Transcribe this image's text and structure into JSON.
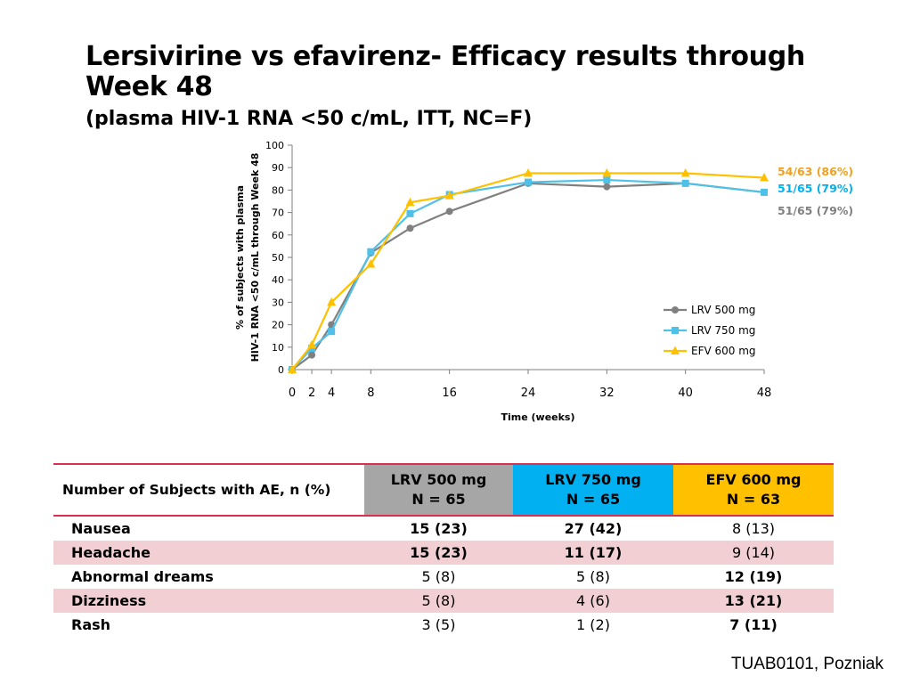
{
  "slide": {
    "title_line1": "Lersivirine vs efavirenz- Efficacy results through",
    "title_line2": "Week 48",
    "subtitle": "(plasma HIV-1 RNA <50 c/mL, ITT, NC=F)",
    "footer": "TUAB0101, Pozniak"
  },
  "chart_data": {
    "type": "line",
    "xlabel": "Time (weeks)",
    "ylabel_line1": "% of subjects with plasma",
    "ylabel_line2": "HIV-1 RNA <50 c/mL through Week 48",
    "x_ticks": [
      0,
      2,
      4,
      8,
      16,
      24,
      32,
      40,
      48
    ],
    "ylim": [
      0,
      100
    ],
    "y_ticks": [
      0,
      10,
      20,
      30,
      40,
      50,
      60,
      70,
      80,
      90,
      100
    ],
    "legend_position": "bottom-right",
    "series": [
      {
        "name": "LRV 500 mg",
        "color": "#808080",
        "marker": "circle",
        "x": [
          0,
          2,
          4,
          8,
          12,
          16,
          24,
          32,
          40,
          48
        ],
        "y": [
          0,
          6.5,
          20,
          52,
          63,
          70.5,
          83,
          81.5,
          83,
          79
        ],
        "end_label": "51/65 (79%)",
        "end_label_color": "#808080"
      },
      {
        "name": "LRV 750 mg",
        "color": "#4fc1e9",
        "marker": "square",
        "x": [
          0,
          2,
          4,
          8,
          12,
          16,
          24,
          32,
          40,
          48
        ],
        "y": [
          0,
          9.5,
          17,
          52.5,
          69.5,
          78,
          83.5,
          84.5,
          83,
          79
        ],
        "end_label": "51/65 (79%)",
        "end_label_color": "#00b0f0"
      },
      {
        "name": "EFV 600 mg",
        "color": "#ffc000",
        "marker": "triangle",
        "x": [
          0,
          2,
          4,
          8,
          12,
          16,
          24,
          32,
          40,
          48
        ],
        "y": [
          0,
          11,
          30,
          47,
          74.5,
          77.5,
          87.5,
          87.5,
          87.5,
          85.5
        ],
        "end_label": "54/63 (86%)",
        "end_label_color": "#f0a020"
      }
    ]
  },
  "ae_table": {
    "header_label": "Number of Subjects with AE,  n (%)",
    "columns": [
      {
        "name": "LRV 500 mg",
        "n": "N = 65"
      },
      {
        "name": "LRV 750 mg",
        "n": "N = 65"
      },
      {
        "name": "EFV 600 mg",
        "n": "N = 63"
      }
    ],
    "rows": [
      {
        "label": "Nausea",
        "values": [
          "15 (23)",
          "27 (42)",
          "8 (13)"
        ],
        "bold": [
          true,
          true,
          false
        ]
      },
      {
        "label": "Headache",
        "values": [
          "15 (23)",
          "11 (17)",
          "9 (14)"
        ],
        "bold": [
          true,
          true,
          false
        ]
      },
      {
        "label": "Abnormal dreams",
        "values": [
          "5 (8)",
          "5 (8)",
          "12 (19)"
        ],
        "bold": [
          false,
          false,
          true
        ]
      },
      {
        "label": "Dizziness",
        "values": [
          "5 (8)",
          "4 (6)",
          "13 (21)"
        ],
        "bold": [
          false,
          false,
          true
        ]
      },
      {
        "label": "Rash",
        "values": [
          "3 (5)",
          "1 (2)",
          "7 (11)"
        ],
        "bold": [
          false,
          false,
          true
        ]
      }
    ]
  }
}
